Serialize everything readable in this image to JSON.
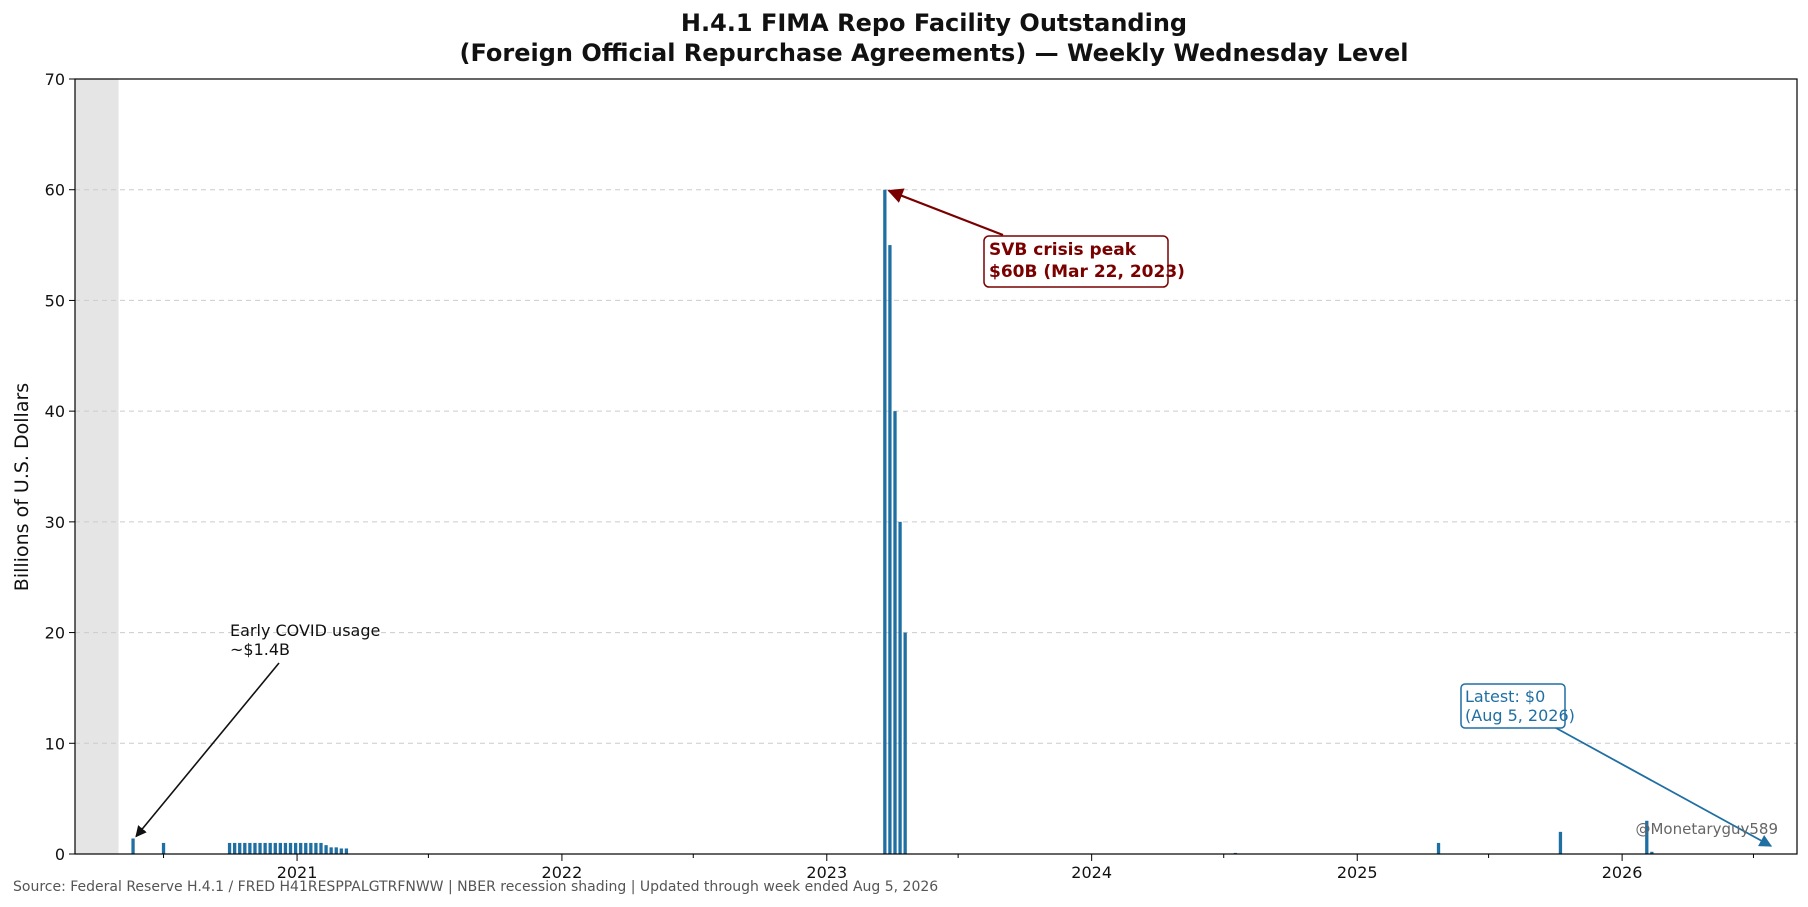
{
  "chart_data": {
    "type": "bar",
    "title": "H.4.1 FIMA Repo Facility Outstanding",
    "subtitle": "(Foreign Official Repurchase Agreements) — Weekly Wednesday Level",
    "xlabel": "",
    "ylabel": "Billions of U.S. Dollars",
    "ylim": [
      0,
      70
    ],
    "y_ticks": [
      0,
      10,
      20,
      30,
      40,
      50,
      60,
      70
    ],
    "x_range": [
      "2020-03-01",
      "2026-08-30"
    ],
    "x_ticks": [
      {
        "date": "2021-01-01",
        "label": "2021"
      },
      {
        "date": "2022-01-01",
        "label": "2022"
      },
      {
        "date": "2023-01-01",
        "label": "2023"
      },
      {
        "date": "2024-01-01",
        "label": "2024"
      },
      {
        "date": "2025-01-01",
        "label": "2025"
      },
      {
        "date": "2026-01-01",
        "label": "2026"
      }
    ],
    "grid": "y-dashed",
    "recession_shading": {
      "start": "2020-03-01",
      "end": "2020-04-30",
      "color": "#e5e5e5"
    },
    "bar_color": "#1f6fa3",
    "series": [
      {
        "points": [
          {
            "date": "2020-05-20",
            "value": 1.4
          },
          {
            "date": "2020-07-01",
            "value": 1.0
          },
          {
            "date": "2020-09-30",
            "value": 1.0
          },
          {
            "date": "2020-10-07",
            "value": 1.0
          },
          {
            "date": "2020-10-14",
            "value": 1.0
          },
          {
            "date": "2020-10-21",
            "value": 1.0
          },
          {
            "date": "2020-10-28",
            "value": 1.0
          },
          {
            "date": "2020-11-04",
            "value": 1.0
          },
          {
            "date": "2020-11-11",
            "value": 1.0
          },
          {
            "date": "2020-11-18",
            "value": 1.0
          },
          {
            "date": "2020-11-25",
            "value": 1.0
          },
          {
            "date": "2020-12-02",
            "value": 1.0
          },
          {
            "date": "2020-12-09",
            "value": 1.0
          },
          {
            "date": "2020-12-16",
            "value": 1.0
          },
          {
            "date": "2020-12-23",
            "value": 1.0
          },
          {
            "date": "2020-12-30",
            "value": 1.0
          },
          {
            "date": "2021-01-06",
            "value": 1.0
          },
          {
            "date": "2021-01-13",
            "value": 1.0
          },
          {
            "date": "2021-01-20",
            "value": 1.0
          },
          {
            "date": "2021-01-27",
            "value": 1.0
          },
          {
            "date": "2021-02-03",
            "value": 1.0
          },
          {
            "date": "2021-02-10",
            "value": 0.8
          },
          {
            "date": "2021-02-17",
            "value": 0.6
          },
          {
            "date": "2021-02-24",
            "value": 0.6
          },
          {
            "date": "2021-03-03",
            "value": 0.5
          },
          {
            "date": "2021-03-10",
            "value": 0.5
          },
          {
            "date": "2023-03-22",
            "value": 60
          },
          {
            "date": "2023-03-29",
            "value": 55
          },
          {
            "date": "2023-04-05",
            "value": 40
          },
          {
            "date": "2023-04-12",
            "value": 30
          },
          {
            "date": "2023-04-19",
            "value": 20
          },
          {
            "date": "2024-07-17",
            "value": 0.1
          },
          {
            "date": "2025-04-23",
            "value": 1.0
          },
          {
            "date": "2025-10-08",
            "value": 2.0
          },
          {
            "date": "2026-02-04",
            "value": 3.0
          },
          {
            "date": "2026-02-11",
            "value": 0.2
          }
        ]
      }
    ],
    "annotations": [
      {
        "name": "covid",
        "lines": [
          "Early COVID usage",
          "~$1.4B"
        ],
        "target_date": "2020-05-20",
        "target_value": 1.4,
        "color": "#111111"
      },
      {
        "name": "peak",
        "lines": [
          "SVB crisis peak",
          "$60B (Mar 22, 2023)"
        ],
        "target_date": "2023-03-22",
        "target_value": 60,
        "color": "#7a0000"
      },
      {
        "name": "latest",
        "lines": [
          "Latest: $0",
          "(Aug 5, 2026)"
        ],
        "target_date": "2026-08-05",
        "target_value": 0.5,
        "color": "#1f6fa3"
      }
    ],
    "source": "Source: Federal Reserve H.4.1 / FRED H41RESPPALGTRFNWW | NBER recession shading | Updated through week ended Aug 5, 2026",
    "watermark": "@Monetaryguy589"
  }
}
